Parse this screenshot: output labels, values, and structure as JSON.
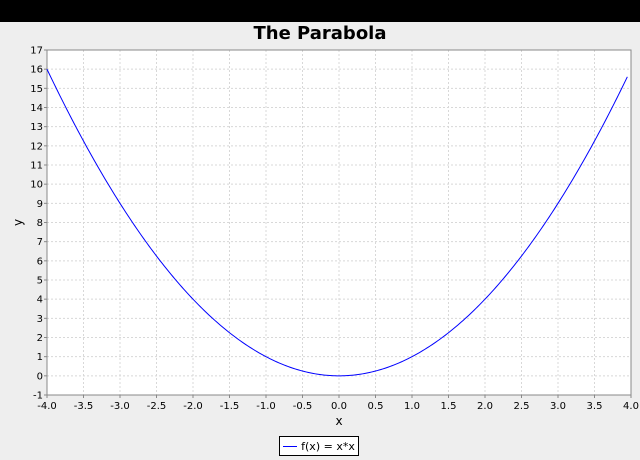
{
  "chart_data": {
    "type": "line",
    "title": "The Parabola",
    "xlabel": "x",
    "ylabel": "y",
    "xlim": [
      -4.0,
      4.0
    ],
    "ylim": [
      -1,
      17
    ],
    "x_ticks": [
      "-4.0",
      "-3.5",
      "-3.0",
      "-2.5",
      "-2.0",
      "-1.5",
      "-1.0",
      "-0.5",
      "0.0",
      "0.5",
      "1.0",
      "1.5",
      "2.0",
      "2.5",
      "3.0",
      "3.5",
      "4.0"
    ],
    "y_ticks": [
      "-1",
      "0",
      "1",
      "2",
      "3",
      "4",
      "5",
      "6",
      "7",
      "8",
      "9",
      "10",
      "11",
      "12",
      "13",
      "14",
      "15",
      "16",
      "17"
    ],
    "grid": true,
    "legend_position": "bottom-center",
    "series": [
      {
        "name": "f(x) = x*x",
        "color": "#0000ff",
        "x": [
          -4.0,
          -3.75,
          -3.5,
          -3.25,
          -3.0,
          -2.75,
          -2.5,
          -2.25,
          -2.0,
          -1.75,
          -1.5,
          -1.25,
          -1.0,
          -0.75,
          -0.5,
          -0.25,
          0.0,
          0.25,
          0.5,
          0.75,
          1.0,
          1.25,
          1.5,
          1.75,
          2.0,
          2.25,
          2.5,
          2.75,
          3.0,
          3.25,
          3.5,
          3.75,
          3.95
        ],
        "y": [
          16.0,
          14.0625,
          12.25,
          10.5625,
          9.0,
          7.5625,
          6.25,
          5.0625,
          4.0,
          3.0625,
          2.25,
          1.5625,
          1.0,
          0.5625,
          0.25,
          0.0625,
          0.0,
          0.0625,
          0.25,
          0.5625,
          1.0,
          1.5625,
          2.25,
          3.0625,
          4.0,
          5.0625,
          6.25,
          7.5625,
          9.0,
          10.5625,
          12.25,
          14.0625,
          15.6025
        ]
      }
    ]
  }
}
